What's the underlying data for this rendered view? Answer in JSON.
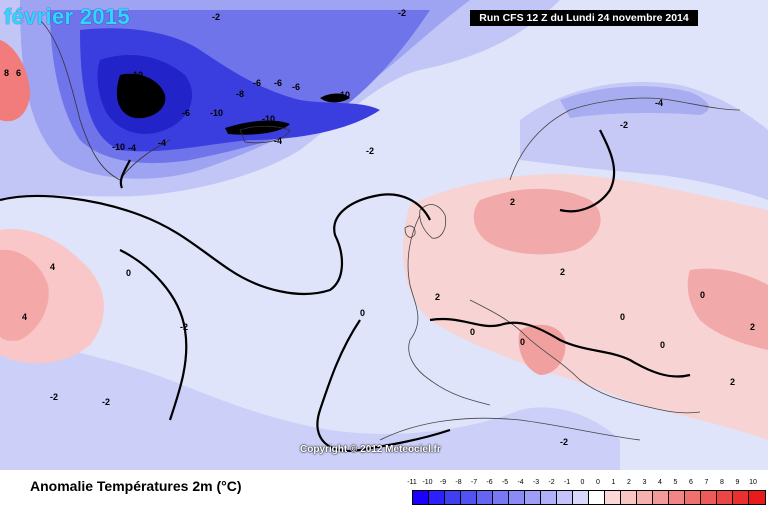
{
  "header": {
    "title": "février 2015",
    "run_info": "Run CFS 12 Z du Lundi 24 novembre 2014",
    "copyright": "Copyright © 2012 Meteociel.fr"
  },
  "legend": {
    "title": "Anomalie Températures 2m (°C)",
    "ticks": [
      "-11",
      "-10",
      "-9",
      "-8",
      "-7",
      "-6",
      "-5",
      "-4",
      "-3",
      "-2",
      "-1",
      "0",
      "0",
      "1",
      "2",
      "3",
      "4",
      "5",
      "6",
      "7",
      "8",
      "9",
      "10"
    ],
    "colors": [
      "#1c00ff",
      "#2d20ff",
      "#3f3ff0",
      "#5252f2",
      "#6565f3",
      "#7878f5",
      "#8b8bf7",
      "#9e9ef8",
      "#b1b1fa",
      "#c4c4fb",
      "#d8d8fd",
      "#ffffff",
      "#fbd8d8",
      "#f9c4c4",
      "#f7b0b0",
      "#f59a9a",
      "#f38585",
      "#f07070",
      "#ee5a5a",
      "#ec4545",
      "#ea2f2f",
      "#e81a1a"
    ]
  },
  "contour_labels": [
    "-10",
    "-10",
    "-10",
    "-10",
    "-10",
    "-8",
    "-6",
    "-6",
    "-6",
    "-6",
    "-4",
    "-4",
    "-4",
    "-4",
    "-2",
    "-2",
    "-2",
    "-2",
    "-2",
    "-2",
    "-2",
    "-2",
    "0",
    "0",
    "0",
    "0",
    "0",
    "0",
    "0",
    "2",
    "2",
    "2",
    "2",
    "2",
    "4",
    "4",
    "6",
    "8"
  ]
}
